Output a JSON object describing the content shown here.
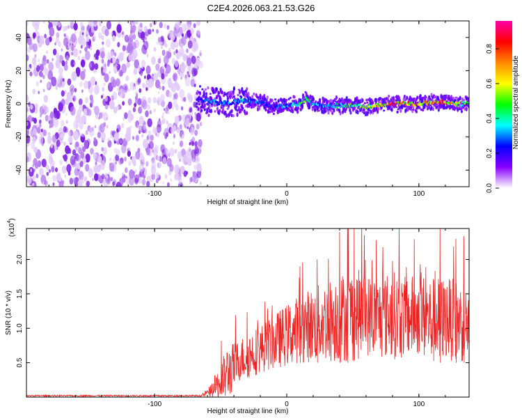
{
  "title": "C2E4.2026.063.21.53.G26",
  "colors": {
    "snr_line": "#ee2222",
    "axis": "#000000",
    "spec_scatter": "#8a2be2"
  },
  "chart_data": [
    {
      "type": "heatmap",
      "name": "spectrogram",
      "xlabel": "Height of straight line (km)",
      "ylabel": "Frequency (Hz)",
      "xlim": [
        -197,
        138
      ],
      "ylim": [
        -50,
        50
      ],
      "x_ticks": [
        -100,
        0,
        100
      ],
      "x_tick_labels": [
        "-100",
        "0",
        "100"
      ],
      "y_ticks": [
        -40,
        -20,
        0,
        20,
        40
      ],
      "y_tick_labels": [
        "-40",
        "-20",
        "0",
        "20",
        "40"
      ],
      "noise_region_x": [
        -197,
        -68
      ],
      "signal_start_x": -68,
      "ridge": {
        "x": [
          -68,
          -60,
          -50,
          -40,
          -35,
          -30,
          -20,
          -10,
          0,
          10,
          15,
          20,
          30,
          40,
          50,
          60,
          70,
          80,
          90,
          100,
          110,
          120,
          130,
          138
        ],
        "freq": [
          3,
          2,
          0,
          1,
          2,
          2,
          1,
          -2,
          -1,
          0,
          3,
          0,
          -2,
          -1,
          -1,
          -2,
          -1,
          0,
          0,
          0,
          1,
          1,
          0,
          0
        ],
        "amplitude": [
          0.25,
          0.35,
          0.3,
          0.35,
          0.4,
          0.35,
          0.3,
          0.3,
          0.35,
          0.5,
          0.55,
          0.4,
          0.35,
          0.45,
          0.55,
          0.6,
          0.7,
          0.9,
          0.85,
          0.75,
          0.8,
          0.85,
          0.6,
          0.5
        ]
      },
      "colorbar": {
        "label": "Normalized spectral amplitude",
        "range": [
          0,
          0.96
        ],
        "ticks": [
          0.0,
          0.2,
          0.4,
          0.6,
          0.8
        ],
        "tick_labels": [
          "0.0",
          "0.2",
          "0.4",
          "0.6",
          "0.8"
        ],
        "colors": [
          "#ffffff",
          "#8800ff",
          "#0000ff",
          "#00ffff",
          "#00ff00",
          "#ffff00",
          "#ff8800",
          "#ff0000",
          "#ff00aa"
        ]
      }
    },
    {
      "type": "line",
      "name": "snr",
      "xlabel": "Height of straight line (km)",
      "ylabel": "SNR (10 * v/v)",
      "multiplier_label": "(x10",
      "multiplier_exp": "4",
      "multiplier_close": ")",
      "xlim": [
        -197,
        138
      ],
      "ylim": [
        0,
        2.45
      ],
      "x_ticks": [
        -100,
        0,
        100
      ],
      "x_tick_labels": [
        "-100",
        "0",
        "100"
      ],
      "y_ticks": [
        0.5,
        1.0,
        1.5,
        2.0
      ],
      "y_tick_labels": [
        "0.5",
        "1.0",
        "1.5",
        "2.0"
      ],
      "envelope": {
        "x": [
          -197,
          -65,
          -58,
          -50,
          -45,
          -40,
          -35,
          -30,
          -20,
          -10,
          0,
          10,
          20,
          30,
          40,
          50,
          60,
          70,
          80,
          90,
          100,
          110,
          120,
          130,
          138
        ],
        "mean": [
          0.02,
          0.02,
          0.08,
          0.2,
          0.35,
          0.45,
          0.55,
          0.6,
          0.7,
          0.8,
          0.9,
          1.0,
          1.05,
          1.1,
          1.15,
          1.2,
          1.2,
          1.15,
          1.2,
          1.15,
          1.2,
          1.1,
          1.15,
          1.1,
          1.05
        ],
        "spread": [
          0.01,
          0.01,
          0.08,
          0.3,
          0.4,
          0.35,
          0.3,
          0.35,
          0.35,
          0.4,
          0.45,
          0.5,
          0.55,
          0.6,
          0.65,
          0.7,
          0.6,
          0.6,
          0.65,
          0.6,
          0.6,
          0.65,
          0.6,
          0.6,
          0.55
        ]
      },
      "peaks": [
        {
          "x": 40,
          "y": 2.4
        },
        {
          "x": 46,
          "y": 2.48
        },
        {
          "x": 116,
          "y": 2.45
        },
        {
          "x": 128,
          "y": 2.3
        },
        {
          "x": 134,
          "y": 2.1
        },
        {
          "x": 23,
          "y": 2.0
        },
        {
          "x": 10,
          "y": 1.9
        }
      ]
    }
  ]
}
